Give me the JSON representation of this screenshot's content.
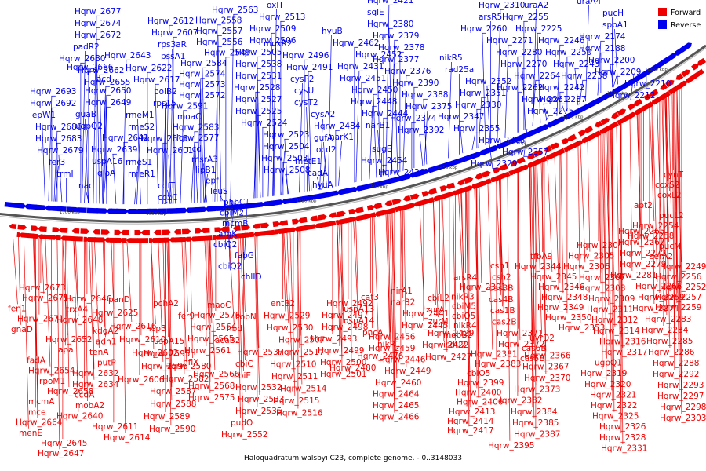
{
  "caption": "Haloquadratum walsbyi C23, complete genome. - 0..3148033",
  "legend": {
    "forward": {
      "label": "Forward",
      "color": "#ee0000"
    },
    "reverse": {
      "label": "Reverse",
      "color": "#0000ee"
    }
  },
  "ticks": [
    "1250 kbp",
    "1300 kbp",
    "1350 kbp",
    "1400 kbp",
    "1450 kbp",
    "1500 kbp",
    "1550 kbp",
    "1600 kbp",
    "1650 kbp",
    "1700 kbp"
  ],
  "reverse_genes": [
    "Hqrw_2677",
    "Hqrw_2674",
    "Hqrw_2672",
    "padR2",
    "Hqrw_2680",
    "Hqrw_2662",
    "Hqrw_2655",
    "rpa1",
    "rpap1",
    "Hqrw_2693",
    "Hqrw_2692",
    "lepW1",
    "Hqrw_2686",
    "Hqrw_2683",
    "Hqrw_2679",
    "fer3",
    "trmI",
    "nac",
    "Hqrw_2643",
    "Hqrw_2666",
    "acd",
    "Hqrw_2650",
    "Hqrw_2649",
    "guaB",
    "ugpQ2",
    "Hqrw_2642",
    "Hqrw_2639",
    "uspA16",
    "gloA",
    "Hqrw_2612",
    "Hqrw_2607",
    "rps3aR",
    "pssA1",
    "Hqrw_2622",
    "Hqrw_2617",
    "polB2",
    "rps15",
    "rmeM1",
    "rmeS2",
    "Hqrw_2615",
    "Hqrw_2601",
    "rmeS1",
    "rmeR1",
    "cdfT",
    "coxC",
    "Hqrw_2563",
    "Hqrw_2558",
    "Hqrw_2557",
    "Hqrw_2556",
    "Hqrw_2549",
    "Hqrw_2584",
    "Hqrw_2574",
    "Hqrw_2573",
    "Hqrw_2572",
    "Hqrw_2591",
    "moaC",
    "Hqrw_2583",
    "Hqrw_2577",
    "ncd",
    "msrA3",
    "lipB1",
    "epf",
    "leuS",
    "phbC",
    "cbiM2",
    "mcmB",
    "argK",
    "cbiQ2",
    "fabG",
    "cbiQ2",
    "chlID",
    "oxlT",
    "Hqrw_2513",
    "Hqrw_2509",
    "Hqrw_2506",
    "Hqrw_2505",
    "Hqrw_2538",
    "Hqrw_2531",
    "Hqrw_2528",
    "Hqrw_2527",
    "Hqrw_2525",
    "Hqrw_2524",
    "Hqrw_2523",
    "Hqrw_2504",
    "Hqrw_2503",
    "Hqrw_2508",
    "moxR2",
    "Hqrw_2496",
    "Hqrw_2491",
    "cysP2",
    "cysU",
    "cysT2",
    "cysA2",
    "Hqrw_2484",
    "gufA",
    "ocd2",
    "metE1",
    "cadA",
    "hyuA",
    "hyuB",
    "Hqrw_2462",
    "Hqrw_2452",
    "Hqrw_2431",
    "Hqrw_2451",
    "Hqrw_2450",
    "Hqrw_2448",
    "Hqrw_2444",
    "narB1",
    "narK1",
    "sugE",
    "Hqrw_2454",
    "Hqrw_2426",
    "Hqrw_2421",
    "sqlE",
    "Hqrw_2380",
    "Hqrw_2379",
    "Hqrw_2378",
    "Hqrw_2377",
    "Hqrw_2376",
    "Hqrw_2390",
    "Hqrw_2388",
    "Hqrw_2375",
    "Hqrw_2374",
    "Hqrw_2392",
    "nikR5",
    "rad25a",
    "Hqrw_2352",
    "Hqrw_2351",
    "Hqrw_2330",
    "Hqrw_2347",
    "Hqrw_2355",
    "Hqrw_2368",
    "Hqrw_2357",
    "Hqrw_2329",
    "Hqrw_2310",
    "arsR5",
    "Hqrw_2260",
    "Hqrw_2271",
    "Hqrw_2280",
    "Hqrw_2270",
    "Hqrw_2264",
    "Hqrw_2262",
    "Hqrw_2261",
    "Hqrw_2275",
    "uraA2",
    "Hqrw_2255",
    "Hqrw_2225",
    "Hqrw_2246",
    "Hqrw_2250",
    "Hqrw_2243",
    "Hqrw_2238",
    "Hqrw_2242",
    "Hqrw_2237",
    "uraA4",
    "pucH",
    "sppA1",
    "Hqrw_2174",
    "Hqrw_2188",
    "Hqrw_2200",
    "Hqrw_2209",
    "Hqrw_2210",
    "Hqrw_2212",
    "fer2",
    "Hqrw_2183",
    "xseA"
  ],
  "forward_genes": [
    "Hqrw_2673",
    "Hqrw_2675",
    "fen1",
    "Hqrw_2671",
    "gnaD",
    "Hqrw_2652",
    "apa",
    "fadA",
    "Hqrw_2654",
    "rpoM1",
    "Hqrw_2658",
    "mcmA",
    "mce",
    "Hqrw_2664",
    "menE",
    "Hqrw_2645",
    "Hqrw_2647",
    "Hqrw_2646",
    "trxA4",
    "Hqrw_2648",
    "kdgA2",
    "adh1",
    "tenA",
    "putP",
    "Hqrw_2632",
    "Hqrw_2634",
    "ccdA",
    "mobA2",
    "Hqrw_2640",
    "Hqrw_2611",
    "Hqrw_2614",
    "panD",
    "Hqrw_2625",
    "Hqrw_2616",
    "Hqrw_2610",
    "Hqrw_2602",
    "Hqrw_2596",
    "Hqrw_2606",
    "pchA2",
    "fer9",
    "hcp3",
    "uspA15",
    "Hqrw_2595",
    "Hqrw_2580",
    "Hqrw_2582",
    "Hqrw_2587",
    "Hqrw_2588",
    "Hqrw_2589",
    "Hqrw_2590",
    "Hqrw_2576",
    "Hqrw_2564",
    "Hqrw_2565",
    "Hqrw_2561",
    "hflX",
    "Hqrw_2566",
    "Hqrw_2568",
    "Hqrw_2575",
    "maoC",
    "cobN",
    "hbd",
    "acaB2",
    "Hqrw_2537",
    "cbiC",
    "cbiE",
    "Hqrw_2532",
    "Hqrw_2533",
    "Hqrw_2535",
    "pudO",
    "Hqrw_2552",
    "entB2",
    "Hqrw_2529",
    "Hqrw_2530",
    "Hqrw_2507",
    "Hqrw_2517",
    "Hqrw_2510",
    "Hqrw_2511",
    "Hqrw_2514",
    "Hqrw_2515",
    "Hqrw_2516",
    "Hqrw_2492",
    "Hqrw_2497",
    "Hqrw_2498",
    "Hqrw_2493",
    "Hqrw_2499",
    "Hqrw_2500",
    "Hqrw_2501",
    "cat3",
    "uspA13",
    "uspA14",
    "pncA",
    "nikR1",
    "Hqrw_2476",
    "Hqrw_2480",
    "nirA1",
    "narB2",
    "Hqrw_2441",
    "Hqrw_2445",
    "Hqrw_2456",
    "Hqrw_2459",
    "Hqrw_2446",
    "Hqrw_2449",
    "Hqrw_2460",
    "Hqrw_2464",
    "Hqrw_2465",
    "Hqrw_2466",
    "cbiL2",
    "zurA",
    "zurM",
    "Hqrw_2429",
    "Hqrw_2422",
    "Hqrw_2427",
    "arsR4",
    "Hqrw_2391",
    "nikR3",
    "cbiM5",
    "cbiO5",
    "nikR4",
    "mobB2",
    "isdU2",
    "Hqrw_2381",
    "Hqrw_2383",
    "cbiO5",
    "Hqrw_2399",
    "Hqrw_2400",
    "Hqrw_2406",
    "Hqrw_2413",
    "Hqrw_2414",
    "Hqrw_2417",
    "csh1",
    "csh2",
    "cas3B",
    "cas4B",
    "cas1B",
    "cas2B",
    "Hqrw_2371",
    "Hqrw_2372",
    "Hqrw_2366",
    "Hqrw_2367",
    "Hqrw_2370",
    "Hqrw_2373",
    "Hqrw_2382",
    "Hqrw_2384",
    "Hqrw_2385",
    "Hqrw_2387",
    "Hqrw_2395",
    "tfbA9",
    "Hqrw_2344",
    "Hqrw_2345",
    "Hqrw_2346",
    "Hqrw_2348",
    "Hqrw_2349",
    "Hqrw_2350",
    "Hqrw_2353",
    "uvrD2",
    "cas6B",
    "cas5B",
    "Hqrw_2304",
    "Hqrw_2305",
    "Hqrw_2306",
    "Hqrw_2307",
    "Hqrw_2308",
    "Hqrw_2309",
    "Hqrw_2311",
    "Hqrw_2312",
    "Hqrw_2314",
    "Hqrw_2316",
    "Hqrw_2317",
    "ugpQ1",
    "Hqrw_2319",
    "Hqrw_2320",
    "Hqrw_2321",
    "Hqrw_2322",
    "Hqrw_2325",
    "Hqrw_2326",
    "Hqrw_2328",
    "Hqrw_2331",
    "Hqrw_2265",
    "Hqrw_2267",
    "Hqrw_2272",
    "Hqrw_2279",
    "Hqrw_2281",
    "Hqrw_2268",
    "Hqrw_2269",
    "Hqrw_2274",
    "Hqrw_2283",
    "Hqrw_2284",
    "Hqrw_2285",
    "Hqrw_2286",
    "Hqrw_2288",
    "Hqrw_2292",
    "Hqrw_2293",
    "Hqrw_2297",
    "Hqrw_2298",
    "Hqrw_2303",
    "cynT",
    "coxS2",
    "coxL2",
    "apt2",
    "pucL2",
    "Hqrw_2254",
    "Hqrw_2258",
    "pucM",
    "serA2",
    "Hqrw_2249",
    "Hqrw_2256",
    "Hqrw_2252",
    "Hqrw_2257",
    "Hqrw_2259"
  ]
}
